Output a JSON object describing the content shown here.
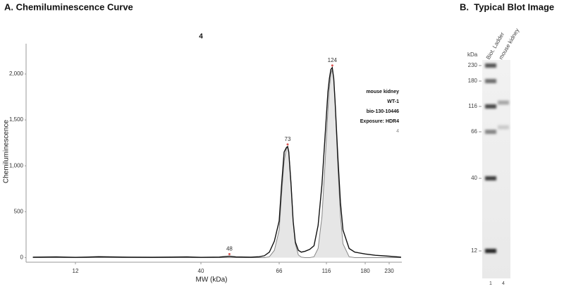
{
  "chart_data": [
    {
      "type": "line",
      "title": "A. Chemiluminescence Curve",
      "subtitle": "4",
      "x_label": "MW (kDa)",
      "y_label": "Chemiluminescence",
      "x": [
        8,
        10,
        12,
        15,
        20,
        25,
        30,
        35,
        40,
        45,
        48,
        50,
        55,
        58,
        60,
        62,
        64,
        66,
        68,
        70,
        72,
        73,
        74,
        76,
        78,
        80,
        83,
        86,
        90,
        95,
        100,
        105,
        110,
        114,
        118,
        120,
        122,
        124,
        126,
        128,
        132,
        136,
        140,
        150,
        160,
        180,
        200,
        230,
        260
      ],
      "series": [
        {
          "color": "#111111",
          "values": [
            5,
            8,
            3,
            10,
            5,
            4,
            6,
            8,
            3,
            6,
            15,
            8,
            5,
            10,
            20,
            60,
            180,
            400,
            800,
            1150,
            1200,
            1210,
            1150,
            800,
            400,
            170,
            80,
            60,
            70,
            90,
            130,
            350,
            800,
            1300,
            1800,
            1950,
            2050,
            2070,
            1950,
            1700,
            1100,
            600,
            300,
            100,
            60,
            40,
            25,
            15,
            5
          ]
        },
        {
          "color": "#888888",
          "fill": "#e6e6e6",
          "values": [
            0,
            0,
            0,
            0,
            0,
            0,
            0,
            0,
            0,
            0,
            0,
            0,
            0,
            0,
            0,
            10,
            80,
            300,
            700,
            1050,
            1190,
            1200,
            1160,
            820,
            400,
            150,
            30,
            5,
            0,
            0,
            10,
            100,
            450,
            1000,
            1600,
            1850,
            2000,
            2050,
            1950,
            1700,
            1000,
            450,
            150,
            10,
            0,
            0,
            0,
            0,
            0
          ]
        }
      ],
      "xlim": [
        7.4,
        262
      ],
      "xticks": [
        12,
        40,
        66,
        116,
        180,
        230
      ],
      "ylim": [
        -50,
        2330
      ],
      "yticks": [
        0,
        500,
        {
          "value": 1000,
          "label": "1,000"
        },
        {
          "value": 1500,
          "label": "1,500"
        },
        {
          "value": 2000,
          "label": "2,000"
        }
      ],
      "grid": false,
      "peaks": {
        "x": [
          48,
          73,
          124
        ],
        "values": [
          15,
          1210,
          2070
        ],
        "color": "#d9534f"
      },
      "annotations": [
        "mouse kidney",
        "WT-1",
        "bio-130-10446",
        "Exposure: HDR4",
        "4"
      ]
    },
    {
      "type": "blot",
      "title": "B.  Typical Blot Image",
      "unit_label": "kDa",
      "mw_ticks": [
        230,
        180,
        116,
        66,
        40,
        12
      ],
      "series": [
        {
          "name": "Biot. Ladder",
          "lane_number": 1,
          "bands": [
            230,
            180,
            116,
            66,
            40,
            12
          ],
          "intensity": [
            0.65,
            0.55,
            0.7,
            0.45,
            0.75,
            0.85
          ]
        },
        {
          "name": "mouse kidney",
          "lane_number": 4,
          "bands": [
            124,
            73
          ],
          "intensity": [
            0.3,
            0.15
          ]
        }
      ]
    }
  ]
}
